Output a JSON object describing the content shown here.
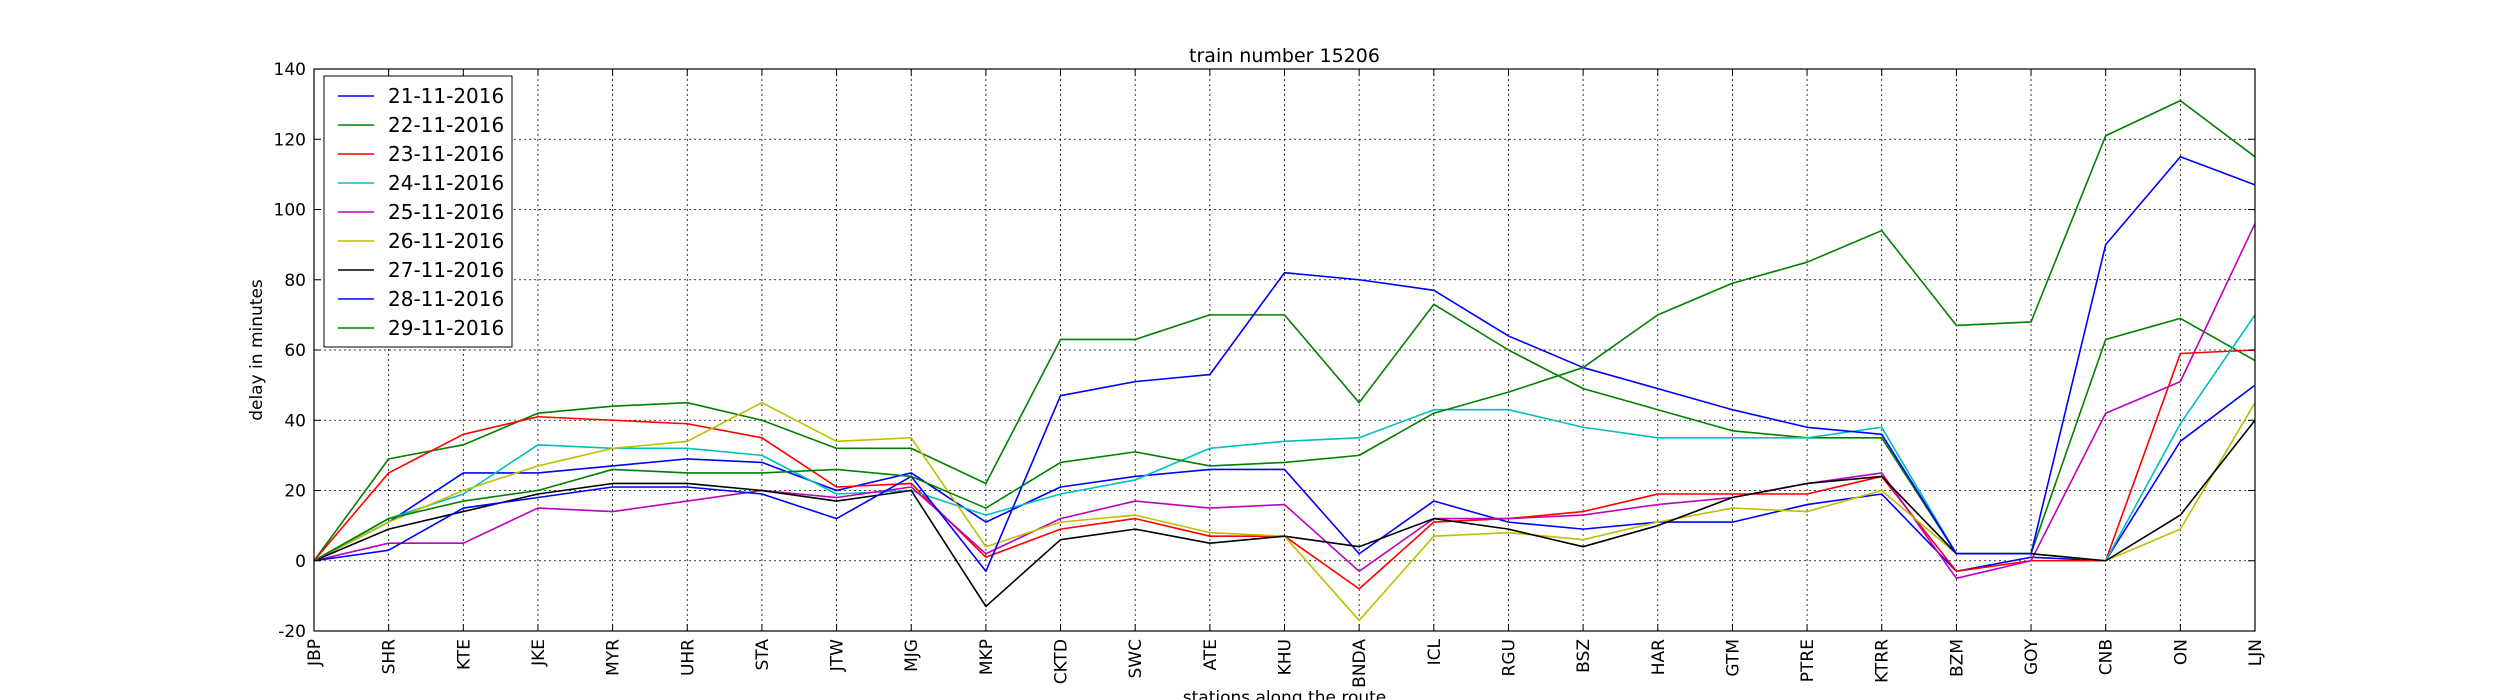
{
  "chart_data": {
    "type": "line",
    "title": "train number 15206",
    "xlabel": "stations along the route",
    "ylabel": "delay in minutes",
    "categories": [
      "JBP",
      "SHR",
      "KTE",
      "JKE",
      "MYR",
      "UHR",
      "STA",
      "JTW",
      "MJG",
      "MKP",
      "CKTD",
      "SWC",
      "ATE",
      "KHU",
      "BNDA",
      "ICL",
      "RGU",
      "BSZ",
      "HAR",
      "GTM",
      "PTRE",
      "KTRR",
      "BZM",
      "GOY",
      "CNB",
      "ON",
      "LJN"
    ],
    "ylim": [
      -20,
      140
    ],
    "yticks": [
      -20,
      0,
      20,
      40,
      60,
      80,
      100,
      120,
      140
    ],
    "grid": true,
    "legend_position": "top-left",
    "series": [
      {
        "name": "21-11-2016",
        "color": "#0000ff",
        "values": [
          0,
          11,
          25,
          25,
          27,
          29,
          28,
          20,
          25,
          11,
          21,
          24,
          26,
          26,
          2,
          17,
          11,
          9,
          11,
          11,
          16,
          19,
          -3,
          1,
          0,
          34,
          50
        ]
      },
      {
        "name": "22-11-2016",
        "color": "#008000",
        "values": [
          0,
          29,
          33,
          42,
          44,
          45,
          40,
          32,
          32,
          22,
          63,
          63,
          70,
          70,
          45,
          73,
          60,
          49,
          43,
          37,
          35,
          35,
          2,
          2,
          63,
          69,
          57
        ]
      },
      {
        "name": "23-11-2016",
        "color": "#ff0000",
        "values": [
          0,
          25,
          36,
          41,
          40,
          39,
          35,
          21,
          22,
          1,
          9,
          12,
          7,
          7,
          -8,
          11,
          12,
          14,
          19,
          19,
          19,
          24,
          -3,
          0,
          0,
          59,
          60
        ]
      },
      {
        "name": "24-11-2016",
        "color": "#00bfbf",
        "values": [
          0,
          12,
          19,
          33,
          32,
          32,
          30,
          19,
          20,
          13,
          19,
          23,
          32,
          34,
          35,
          43,
          43,
          38,
          35,
          35,
          35,
          38,
          2,
          2,
          0,
          39,
          70
        ]
      },
      {
        "name": "25-11-2016",
        "color": "#bf00bf",
        "values": [
          0,
          5,
          5,
          15,
          14,
          17,
          20,
          18,
          21,
          2,
          12,
          17,
          15,
          16,
          -3,
          12,
          12,
          13,
          16,
          18,
          22,
          25,
          -5,
          0,
          42,
          51,
          96
        ]
      },
      {
        "name": "26-11-2016",
        "color": "#bfbf00",
        "values": [
          0,
          11,
          20,
          27,
          32,
          34,
          45,
          34,
          35,
          4,
          11,
          13,
          8,
          7,
          -17,
          7,
          8,
          6,
          11,
          15,
          14,
          20,
          2,
          2,
          0,
          9,
          45
        ]
      },
      {
        "name": "27-11-2016",
        "color": "#000000",
        "values": [
          0,
          9,
          14,
          19,
          22,
          22,
          20,
          17,
          20,
          -13,
          6,
          9,
          5,
          7,
          4,
          12,
          9,
          4,
          10,
          18,
          22,
          24,
          2,
          2,
          0,
          13,
          40
        ]
      },
      {
        "name": "28-11-2016",
        "color": "#0000ff",
        "values": [
          0,
          3,
          15,
          18,
          21,
          21,
          19,
          12,
          24,
          -3,
          47,
          51,
          53,
          82,
          80,
          77,
          64,
          55,
          49,
          43,
          38,
          36,
          2,
          2,
          90,
          115,
          107
        ]
      },
      {
        "name": "29-11-2016",
        "color": "#008000",
        "values": [
          0,
          12,
          17,
          20,
          26,
          25,
          25,
          26,
          24,
          15,
          28,
          31,
          27,
          28,
          30,
          42,
          48,
          55,
          70,
          79,
          85,
          94,
          67,
          68,
          121,
          131,
          115
        ]
      }
    ]
  }
}
